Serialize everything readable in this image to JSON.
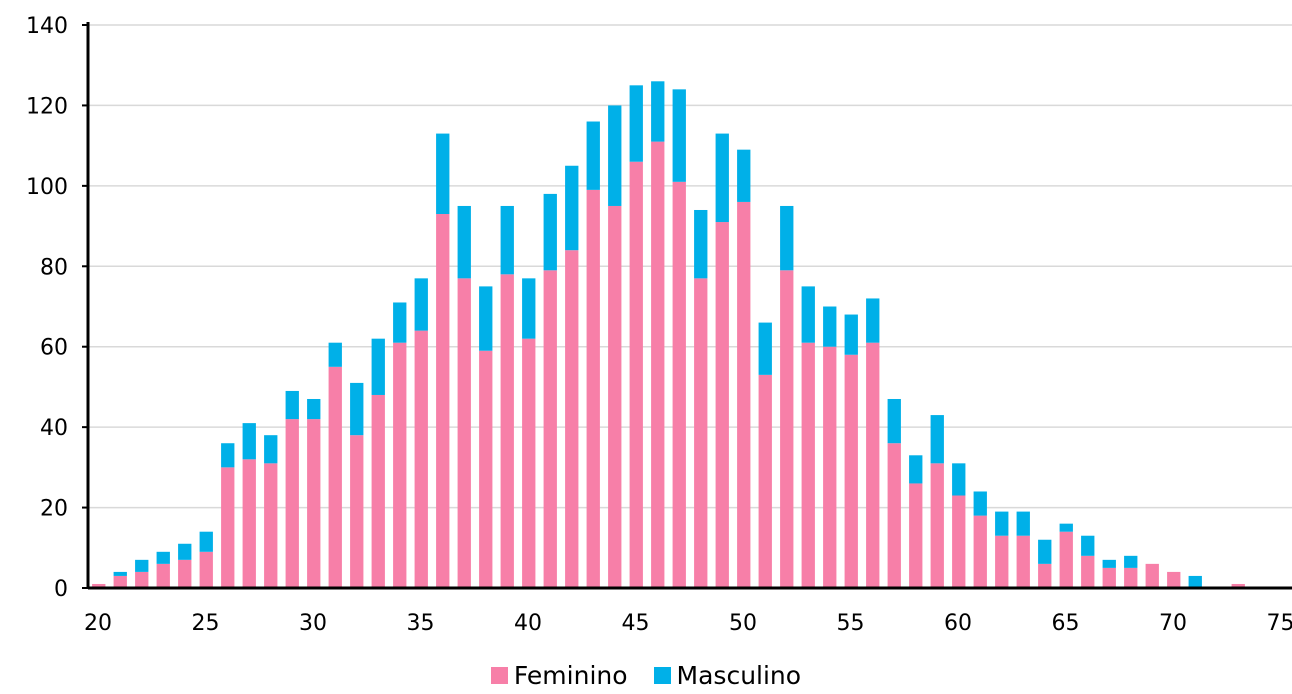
{
  "chart_data": {
    "type": "bar",
    "stacked": true,
    "title": "",
    "xlabel": "",
    "ylabel": "",
    "xlim": [
      20,
      76
    ],
    "ylim": [
      0,
      140
    ],
    "x_ticks": [
      20,
      25,
      30,
      35,
      40,
      45,
      50,
      55,
      60,
      65,
      70,
      75
    ],
    "y_ticks": [
      0,
      20,
      40,
      60,
      80,
      100,
      120,
      140
    ],
    "grid": "horizontal",
    "legend_position": "bottom",
    "categories": [
      20,
      21,
      22,
      23,
      24,
      25,
      26,
      27,
      28,
      29,
      30,
      31,
      32,
      33,
      34,
      35,
      36,
      37,
      38,
      39,
      40,
      41,
      42,
      43,
      44,
      45,
      46,
      47,
      48,
      49,
      50,
      51,
      52,
      53,
      54,
      55,
      56,
      57,
      58,
      59,
      60,
      61,
      62,
      63,
      64,
      65,
      66,
      67,
      68,
      69,
      70,
      71,
      72,
      73,
      74,
      75
    ],
    "series": [
      {
        "name": "Feminino",
        "color": "#f77fa8",
        "values": [
          1,
          3,
          4,
          6,
          7,
          9,
          30,
          32,
          31,
          42,
          42,
          55,
          38,
          48,
          61,
          64,
          93,
          77,
          59,
          78,
          62,
          79,
          84,
          99,
          95,
          106,
          111,
          101,
          77,
          91,
          96,
          53,
          79,
          61,
          60,
          58,
          61,
          36,
          26,
          31,
          23,
          18,
          13,
          13,
          6,
          14,
          8,
          5,
          5,
          6,
          4,
          0,
          0,
          1,
          0,
          0
        ]
      },
      {
        "name": "Masculino",
        "color": "#00b0e8",
        "values": [
          0,
          1,
          3,
          3,
          4,
          5,
          6,
          9,
          7,
          7,
          5,
          6,
          13,
          14,
          10,
          13,
          20,
          18,
          16,
          17,
          15,
          19,
          21,
          17,
          25,
          19,
          15,
          23,
          17,
          22,
          13,
          13,
          16,
          14,
          10,
          10,
          11,
          11,
          7,
          12,
          8,
          6,
          6,
          6,
          6,
          2,
          5,
          2,
          3,
          0,
          0,
          3,
          0,
          0,
          0,
          0
        ]
      }
    ]
  }
}
